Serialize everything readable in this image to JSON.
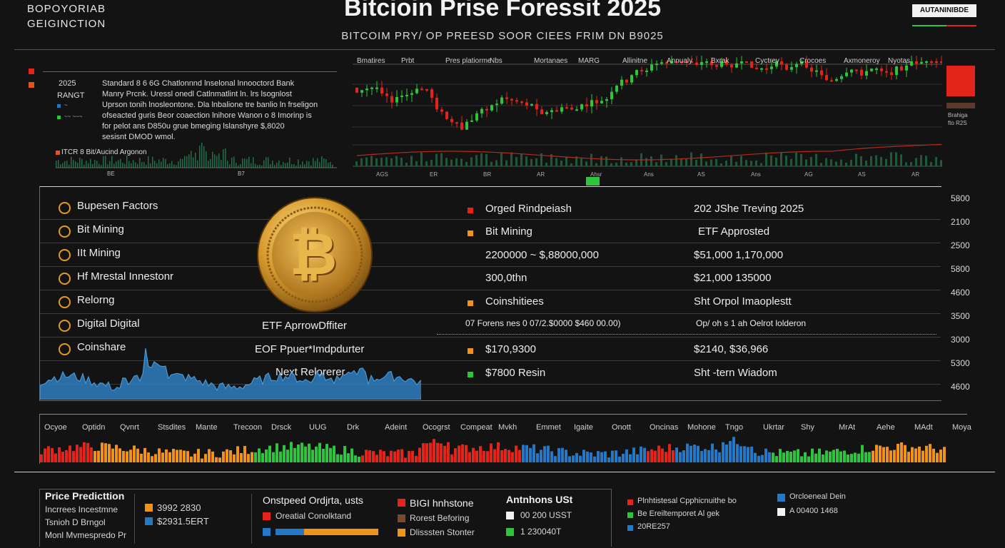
{
  "header": {
    "corner_line1": "BOPOYORIAB",
    "corner_line2": "GEIGINCTION",
    "title": "Bitcioin Prise Foressit 2025",
    "subtitle": "BITCOIM PRY/ OP PREESD SOOR CIEES FRIM DN B9025",
    "badge": "AUTANINIBDE"
  },
  "colors": {
    "red": "#e32419",
    "green": "#2ec43c",
    "orange": "#ef9418",
    "blue": "#2379c6",
    "gold": "#d9a53a"
  },
  "info_block": {
    "year": "2025",
    "label": "RANGT",
    "small1": "~",
    "small2": "~~ ~~~",
    "lines": [
      "Standard 8 6 6G Chatlonnnd lnselonal lnnooctord Bank",
      "Manry Prcnk. Uressl onedl Catlnmatlint ln. lrs lsognlost",
      "Uprson tonih lnosleontone. Dla lnbalione tre banlio ln frseligon",
      "ofseacted guris Beor coaection lnihore Wanon o 8 Imorinp is",
      "for pelot ans D850u grue bmeging lslanshyre $,8020",
      "sesisnt DMOD wmol."
    ],
    "legend": "ITCR 8 Bit/Aucind Argonon",
    "axis_labels": [
      "BE",
      "B7"
    ]
  },
  "candles_panel": {
    "top_labels": [
      "Bmatires",
      "Prbt",
      "Pres platiorme",
      "Nbs",
      "Mortanaes",
      "MARG",
      "Allinitne",
      "Annualy",
      "Bxrak",
      "Cyctrey",
      "Crocoes",
      "Axmoneroy",
      "Nyotas"
    ],
    "bottom_labels": [
      "AGS",
      "ER",
      "BR",
      "AR",
      "Ahsr",
      "Ans",
      "AS",
      "Ans",
      "AG",
      "AS",
      "AR"
    ],
    "side_caption": "Brahiga\nfto R2S"
  },
  "factors": [
    "Bupesen Factors",
    "Bit Mining",
    "IIt Mining",
    "Hf  Mrestal Innestonr",
    "Relorng",
    "Digital Digital",
    "Coinshare"
  ],
  "middle": {
    "etf1": "ETF AprrowDffiter",
    "etf2": "EOF Ppuer*Imdpdurter",
    "next": "Next Relorerer"
  },
  "table": {
    "rows": [
      {
        "col1": "Orged Rindpeiash",
        "col2": "202 JShe Treving 2025",
        "chip": "#e32419"
      },
      {
        "col1": "Bit Mining",
        "col2": "ETF Approsted",
        "chip": "#ef9418"
      },
      {
        "col1": "2200000  ~ $,88000,000",
        "col2": "$51,000    1,170,000",
        "chip": ""
      },
      {
        "col1": "300,0thn",
        "col2": "$21,000    135000",
        "chip": ""
      },
      {
        "col1": "Coinshitiees",
        "col2": "Sht Orpol  Imaoplestt",
        "chip": "#ef9418"
      },
      {
        "col1": "07 Forens nes 0 07/2.$0000 $460 00.00)",
        "col2": "Op/ oh s 1 ah Oelrot lolderon",
        "chip": ""
      },
      {
        "col1": "$170,9300",
        "col2": "$2140, $36,966",
        "chip": "#ef9418"
      },
      {
        "col1": "$7800 Resin",
        "col2": "Sht -tern Wiadom",
        "chip": "#2ec43c"
      }
    ]
  },
  "right_axis": [
    "5800",
    "2100",
    "2500",
    "5800",
    "4600",
    "3500",
    "3000",
    "5300",
    "4600"
  ],
  "bottom_strip": {
    "months": [
      "Ocyoe",
      "Optidn",
      "Qvnrt",
      "Stsdites",
      "Mante",
      "Trecoon",
      "Drsck",
      "UUG",
      "Drk",
      "Adeint",
      "Ocogrst",
      "Compeat",
      "Mvkh",
      "Emmet",
      "Igaite",
      "Onott",
      "Oncinas",
      "Mohone",
      "Tngo",
      "Ukrtar",
      "Shy",
      "MrAt",
      "Aehe",
      "MAdt",
      "Moya"
    ]
  },
  "bottom": {
    "p1_title": "Price Predicttion",
    "p1_lines": [
      "Incrrees Incestmne",
      "Tsnioh D Brngol",
      "Monl Mvmespredo Pr"
    ],
    "p1_values": [
      "3992 2830",
      "$2931.5ERT"
    ],
    "p2_title": "Onstpeed Ordjrta, usts",
    "p2_line1": "Oreatial Conolktand",
    "p3_title": "BIGI hnhstone",
    "p3_lines": [
      "Rorest Beforing",
      "Dlisssten Stonter"
    ],
    "p4_title": "Antnhons USt",
    "p4_lines": [
      "00 200 USST",
      "1 230040T"
    ],
    "p5_lines": [
      "Plnhtistesal Cpphicnuithe bo",
      "Be Ereiltemporet Al gek",
      "20RE257"
    ],
    "p6_lines": [
      "Orcloeneal Dein",
      "A 00400 1468"
    ]
  }
}
